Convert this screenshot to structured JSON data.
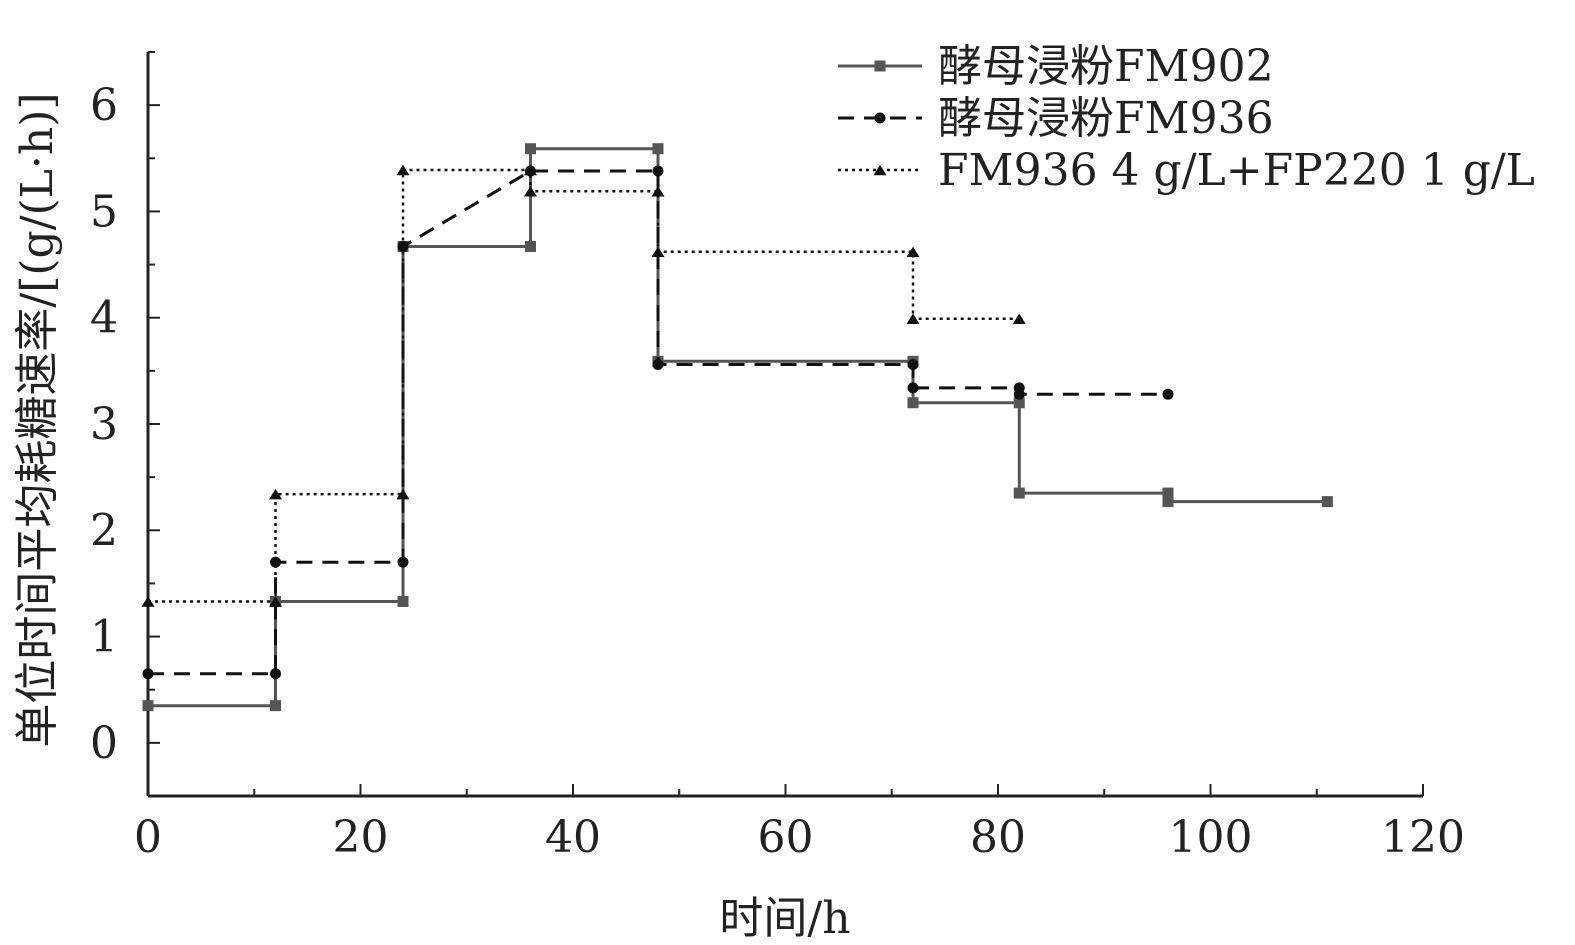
{
  "chart_data": {
    "type": "line",
    "step": true,
    "title": "",
    "xlabel": "时间/h",
    "ylabel": "单位时间平均耗糖速率/[(g/(L·h)]",
    "xlim": [
      0,
      120
    ],
    "ylim": [
      -0.5,
      6.5
    ],
    "xticks": [
      0,
      20,
      40,
      60,
      80,
      100,
      120
    ],
    "yticks": [
      0,
      1,
      2,
      3,
      4,
      5,
      6
    ],
    "grid": false,
    "legend_position": "top-right",
    "series": [
      {
        "name": "酵母浸粉FM902",
        "line_style": "solid",
        "marker": "square",
        "color": "#555555",
        "points": [
          {
            "x": 0,
            "y": 0.35
          },
          {
            "x": 12,
            "y": 0.35
          },
          {
            "x": 12,
            "y": 1.33
          },
          {
            "x": 24,
            "y": 1.33
          },
          {
            "x": 24,
            "y": 4.67
          },
          {
            "x": 36,
            "y": 4.67
          },
          {
            "x": 36,
            "y": 5.59
          },
          {
            "x": 48,
            "y": 5.59
          },
          {
            "x": 48,
            "y": 3.59
          },
          {
            "x": 72,
            "y": 3.59
          },
          {
            "x": 72,
            "y": 3.2
          },
          {
            "x": 82,
            "y": 3.2
          },
          {
            "x": 82,
            "y": 2.35
          },
          {
            "x": 96,
            "y": 2.35
          },
          {
            "x": 96,
            "y": 2.27
          },
          {
            "x": 111,
            "y": 2.27
          }
        ]
      },
      {
        "name": "酵母浸粉FM936",
        "line_style": "dashed",
        "marker": "circle",
        "color": "#111111",
        "points": [
          {
            "x": 0,
            "y": 0.65
          },
          {
            "x": 12,
            "y": 0.65
          },
          {
            "x": 12,
            "y": 1.7
          },
          {
            "x": 24,
            "y": 1.7
          },
          {
            "x": 24,
            "y": 4.67
          },
          {
            "x": 36,
            "y": 5.38
          },
          {
            "x": 48,
            "y": 5.38
          },
          {
            "x": 48,
            "y": 3.56
          },
          {
            "x": 72,
            "y": 3.56
          },
          {
            "x": 72,
            "y": 3.34
          },
          {
            "x": 82,
            "y": 3.34
          },
          {
            "x": 82,
            "y": 3.28
          },
          {
            "x": 96,
            "y": 3.28
          }
        ]
      },
      {
        "name": "FM936 4 g/L+FP220 1 g/L",
        "line_style": "dotted",
        "marker": "triangle",
        "color": "#111111",
        "points": [
          {
            "x": 0,
            "y": 1.33
          },
          {
            "x": 12,
            "y": 1.33
          },
          {
            "x": 12,
            "y": 2.34
          },
          {
            "x": 24,
            "y": 2.34
          },
          {
            "x": 24,
            "y": 5.39
          },
          {
            "x": 36,
            "y": 5.39
          },
          {
            "x": 36,
            "y": 5.19
          },
          {
            "x": 48,
            "y": 5.19
          },
          {
            "x": 48,
            "y": 4.62
          },
          {
            "x": 72,
            "y": 4.62
          },
          {
            "x": 72,
            "y": 3.99
          },
          {
            "x": 82,
            "y": 3.99
          }
        ]
      }
    ]
  }
}
